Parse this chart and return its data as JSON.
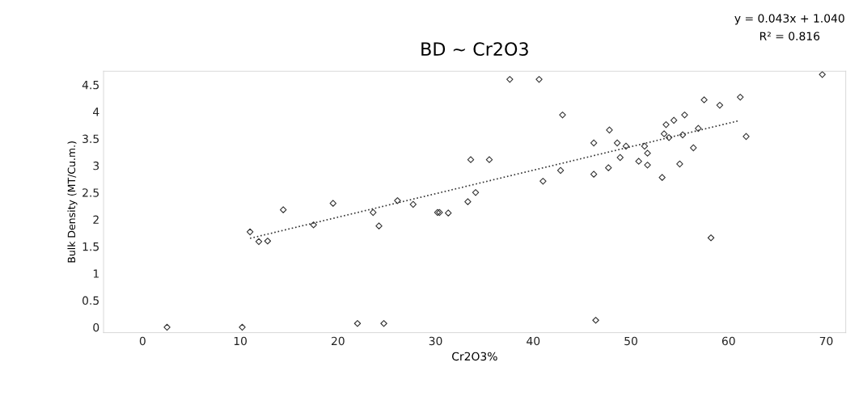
{
  "chart_data": {
    "type": "scatter",
    "title": "BD ~ Cr2O3",
    "xlabel": "Cr2O3%",
    "ylabel": "Bulk Density (MT/Cu.m.)",
    "annotations": [
      "y = 0.043x + 1.040",
      "R² = 0.816"
    ],
    "xlim": [
      -4,
      72
    ],
    "ylim": [
      -0.1,
      4.75
    ],
    "xticks": [
      0,
      10,
      20,
      30,
      40,
      50,
      60,
      70
    ],
    "yticks": [
      0,
      0.5,
      1,
      1.5,
      2,
      2.5,
      3,
      3.5,
      4,
      4.5
    ],
    "grid": false,
    "legend": false,
    "marker": "diamond",
    "series": [
      {
        "color": "#333333",
        "x": [
          11.0,
          11.9,
          12.8,
          14.4,
          17.5,
          19.5,
          23.6,
          24.2,
          26.1,
          27.7,
          30.2,
          2.5,
          10.2,
          22.0,
          24.7,
          37.6,
          40.6,
          69.6,
          43.0,
          47.8,
          46.2,
          48.6,
          49.5,
          48.9,
          51.4,
          51.7,
          50.8,
          51.7,
          47.7,
          46.2,
          41.0,
          42.8,
          33.6,
          35.5,
          34.1,
          33.3,
          30.4,
          31.3,
          53.6,
          54.4,
          55.5,
          53.4,
          53.9,
          55.3,
          56.9,
          56.4,
          55.0,
          53.2,
          57.5,
          59.1,
          61.2,
          61.8,
          58.2,
          46.4
        ],
        "values": [
          1.77,
          1.59,
          1.6,
          2.18,
          1.9,
          2.3,
          2.13,
          1.88,
          2.35,
          2.28,
          2.13,
          0.0,
          0.0,
          0.07,
          0.07,
          4.6,
          4.6,
          4.69,
          3.94,
          3.66,
          3.42,
          3.42,
          3.36,
          3.15,
          3.36,
          3.23,
          3.08,
          3.01,
          2.96,
          2.84,
          2.71,
          2.91,
          3.11,
          3.11,
          2.5,
          2.33,
          2.13,
          2.12,
          3.76,
          3.84,
          3.94,
          3.59,
          3.52,
          3.57,
          3.69,
          3.33,
          3.03,
          2.78,
          4.22,
          4.12,
          4.27,
          3.54,
          1.66,
          0.13
        ]
      },
      {
        "type": "line",
        "line_style": "dotted",
        "marker": "none",
        "color": "#333333",
        "x": [
          11,
          61
        ],
        "values": [
          1.65,
          3.83
        ]
      }
    ]
  }
}
